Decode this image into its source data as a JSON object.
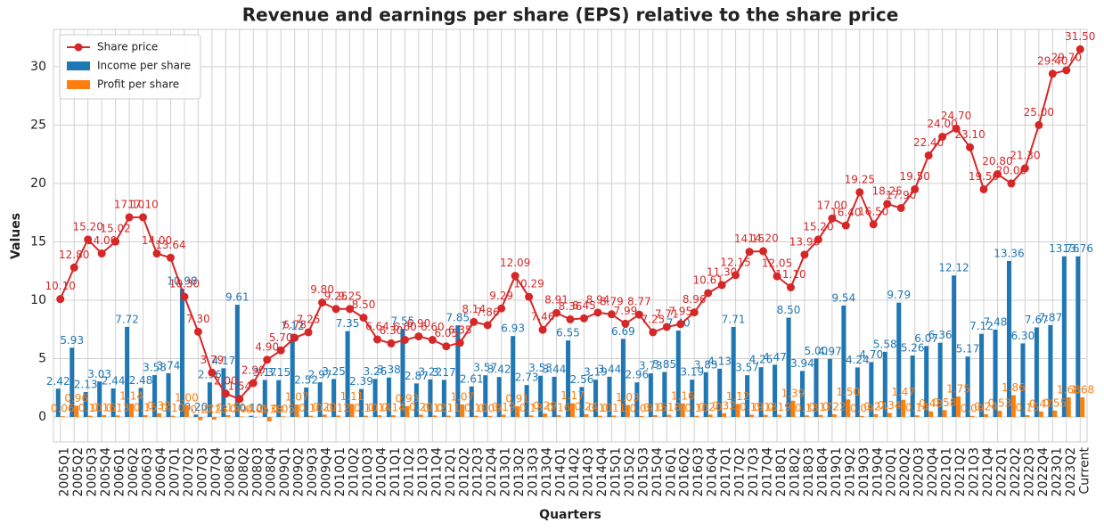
{
  "chart_data": {
    "type": "bar_line",
    "title": "Revenue and earnings per share (EPS) relative to the share price",
    "x_label": "Quarters",
    "y_label": "Values",
    "categories": [
      "2005Q1",
      "2005Q2",
      "2005Q3",
      "2005Q4",
      "2006Q1",
      "2006Q2",
      "2006Q3",
      "2006Q4",
      "2007Q1",
      "2007Q2",
      "2007Q3",
      "2007Q4",
      "2008Q1",
      "2008Q2",
      "2008Q3",
      "2008Q4",
      "2009Q1",
      "2009Q2",
      "2009Q3",
      "2009Q4",
      "2010Q1",
      "2010Q2",
      "2010Q3",
      "2010Q4",
      "2011Q1",
      "2011Q2",
      "2011Q3",
      "2011Q4",
      "2012Q1",
      "2012Q2",
      "2012Q3",
      "2012Q4",
      "2013Q1",
      "2013Q2",
      "2013Q3",
      "2013Q4",
      "2014Q1",
      "2014Q2",
      "2014Q3",
      "2014Q4",
      "2015Q1",
      "2015Q2",
      "2015Q3",
      "2015Q4",
      "2016Q1",
      "2016Q2",
      "2016Q3",
      "2016Q4",
      "2017Q1",
      "2017Q2",
      "2017Q3",
      "2017Q4",
      "2018Q1",
      "2018Q2",
      "2018Q3",
      "2018Q4",
      "2019Q1",
      "2019Q2",
      "2019Q3",
      "2019Q4",
      "2020Q1",
      "2020Q2",
      "2020Q3",
      "2020Q4",
      "2021Q1",
      "2021Q2",
      "2021Q3",
      "2021Q4",
      "2022Q1",
      "2022Q2",
      "2022Q3",
      "2022Q4",
      "2023Q1",
      "2023Q2",
      "Current"
    ],
    "series": [
      {
        "name": "Share price",
        "kind": "line",
        "color": "#d62728",
        "values": [
          10.1,
          12.8,
          15.2,
          14.0,
          15.02,
          17.1,
          17.1,
          14.0,
          13.64,
          10.3,
          7.3,
          3.79,
          2.0,
          1.54,
          2.9,
          4.9,
          5.7,
          6.78,
          7.25,
          9.8,
          9.25,
          9.25,
          8.5,
          6.64,
          6.3,
          6.6,
          6.9,
          6.6,
          6.05,
          6.35,
          8.14,
          7.86,
          9.29,
          12.09,
          10.29,
          7.46,
          8.91,
          8.36,
          8.45,
          8.94,
          8.79,
          7.99,
          8.77,
          7.25,
          7.71,
          7.95,
          8.96,
          10.61,
          11.3,
          12.15,
          14.15,
          14.2,
          12.05,
          11.1,
          13.9,
          15.2,
          17.0,
          16.4,
          19.25,
          16.5,
          18.25,
          17.9,
          19.5,
          22.4,
          24.0,
          24.7,
          23.1,
          19.5,
          20.8,
          20.0,
          21.3,
          25.0,
          29.4,
          29.7,
          31.5
        ],
        "value_labels": [
          "10.10",
          "12.80",
          "15.20",
          "14.00",
          "15.02",
          "17.10",
          "17.10",
          "14.00",
          "13.64",
          "10.30",
          "7.30",
          "3.79",
          "2.00",
          "1.54",
          "2.90",
          "4.90",
          "5.70",
          "6.78",
          "7.25",
          "9.80",
          "9.25",
          "9.25",
          "8.50",
          "6.64",
          "6.30",
          "6.60",
          "6.90",
          "6.60",
          "6.05",
          "6.35",
          "8.14",
          "7.86",
          "9.29",
          "12.09",
          "10.29",
          "7.46",
          "8.91",
          "8.36",
          "8.45",
          "8.94",
          "8.79",
          "7.99",
          "8.77",
          "7.25",
          "7.71",
          "7.95",
          "8.96",
          "10.61",
          "11.30",
          "12.15",
          "14.15",
          "14.20",
          "12.05",
          "11.10",
          "13.90",
          "15.20",
          "17.00",
          "16.40",
          "19.25",
          "16.50",
          "18.25",
          "17.90",
          "19.50",
          "22.40",
          "24.00",
          "24.70",
          "23.10",
          "19.50",
          "20.80",
          "20.00",
          "21.30",
          "25.00",
          "29.40",
          "29.70",
          "31.50"
        ]
      },
      {
        "name": "Income per share",
        "kind": "bar",
        "color": "#1f77b4",
        "values": [
          2.42,
          5.93,
          2.13,
          3.03,
          2.44,
          7.72,
          2.48,
          3.58,
          3.74,
          10.98,
          0.2,
          2.96,
          4.17,
          9.61,
          0.1,
          3.17,
          3.15,
          7.12,
          2.52,
          2.97,
          3.25,
          7.35,
          2.39,
          3.26,
          3.38,
          7.55,
          2.87,
          3.22,
          3.17,
          7.85,
          2.61,
          3.57,
          3.42,
          6.93,
          2.73,
          3.53,
          3.44,
          6.55,
          2.56,
          3.19,
          3.44,
          6.69,
          2.96,
          3.73,
          3.85,
          7.4,
          3.19,
          3.83,
          4.13,
          7.71,
          3.57,
          4.26,
          4.47,
          8.5,
          3.94,
          5.0,
          4.97,
          9.54,
          4.24,
          4.7,
          5.58,
          9.79,
          5.26,
          6.07,
          6.36,
          12.12,
          5.17,
          7.12,
          7.48,
          13.36,
          6.3,
          7.67,
          7.87,
          13.76,
          13.76
        ],
        "value_labels": [
          "2.42",
          "5.93",
          "2.13",
          "3.03",
          "2.44",
          "7.72",
          "2.48",
          "3.58",
          "3.74",
          "10.98",
          "0.20",
          "2.96",
          "4.17",
          "9.61",
          "0.10",
          "3.17",
          "3.15",
          "7.12",
          "2.52",
          "2.97",
          "3.25",
          "7.35",
          "2.39",
          "3.26",
          "3.38",
          "7.55",
          "2.87",
          "3.22",
          "3.17",
          "7.85",
          "2.61",
          "3.57",
          "3.42",
          "6.93",
          "2.73",
          "3.53",
          "3.44",
          "6.55",
          "2.56",
          "3.19",
          "3.44",
          "6.69",
          "2.96",
          "3.73",
          "3.85",
          "7.40",
          "3.19",
          "3.83",
          "4.13",
          "7.71",
          "3.57",
          "4.26",
          "4.47",
          "8.50",
          "3.94",
          "5.00",
          "4.97",
          "9.54",
          "4.24",
          "4.70",
          "5.58",
          "9.79",
          "5.26",
          "6.07",
          "6.36",
          "12.12",
          "5.17",
          "7.12",
          "7.48",
          "13.36",
          "6.30",
          "7.67",
          "7.87",
          "13.76",
          "13.76"
        ]
      },
      {
        "name": "Profit per share",
        "kind": "bar",
        "color": "#ff7f0e",
        "values": [
          0.06,
          0.96,
          0.1,
          0.16,
          0.13,
          1.14,
          0.15,
          0.32,
          0.1,
          1.0,
          -0.27,
          -0.23,
          0.15,
          0.04,
          -0.05,
          -0.38,
          0.05,
          1.07,
          0.1,
          0.2,
          0.12,
          1.11,
          0.1,
          0.14,
          0.14,
          0.93,
          0.2,
          0.12,
          0.11,
          1.07,
          0.1,
          0.09,
          0.19,
          0.91,
          0.13,
          0.29,
          0.16,
          1.17,
          0.24,
          0.1,
          0.11,
          1.03,
          0.09,
          0.15,
          0.18,
          1.16,
          0.1,
          0.2,
          0.32,
          1.12,
          0.19,
          0.18,
          0.19,
          1.39,
          0.13,
          0.17,
          0.22,
          1.5,
          0.09,
          0.24,
          0.34,
          1.47,
          0.14,
          0.48,
          0.58,
          1.75,
          0.09,
          0.24,
          0.53,
          1.86,
          0.15,
          0.47,
          0.55,
          1.68,
          1.68
        ],
        "value_labels": [
          "0.06",
          "0.96",
          "0.10",
          "0.16",
          "0.13",
          "1.14",
          "0.15",
          "0.32",
          "0.10",
          "1.00",
          "-0.27",
          "-0.23",
          "0.15",
          "0.04",
          "-0.05",
          "-0.38",
          "0.05",
          "1.07",
          "0.10",
          "0.20",
          "0.12",
          "1.11",
          "0.10",
          "0.14",
          "0.14",
          "0.93",
          "0.20",
          "0.12",
          "0.11",
          "1.07",
          "0.10",
          "0.09",
          "0.19",
          "0.91",
          "0.13",
          "0.29",
          "0.16",
          "1.17",
          "0.24",
          "0.10",
          "0.11",
          "1.03",
          "0.09",
          "0.15",
          "0.18",
          "1.16",
          "0.10",
          "0.20",
          "0.32",
          "1.12",
          "0.19",
          "0.18",
          "0.19",
          "1.39",
          "0.13",
          "0.17",
          "0.22",
          "1.50",
          "0.09",
          "0.24",
          "0.34",
          "1.47",
          "0.14",
          "0.48",
          "0.58",
          "1.75",
          "0.09",
          "0.24",
          "0.53",
          "1.86",
          "0.15",
          "0.47",
          "0.55",
          "1.68",
          "1.68"
        ]
      }
    ],
    "ylim": [
      -2.14,
      33.2
    ],
    "yticks": [
      0,
      5,
      10,
      15,
      20,
      25,
      30
    ],
    "grid": true,
    "legend": "upper left"
  }
}
